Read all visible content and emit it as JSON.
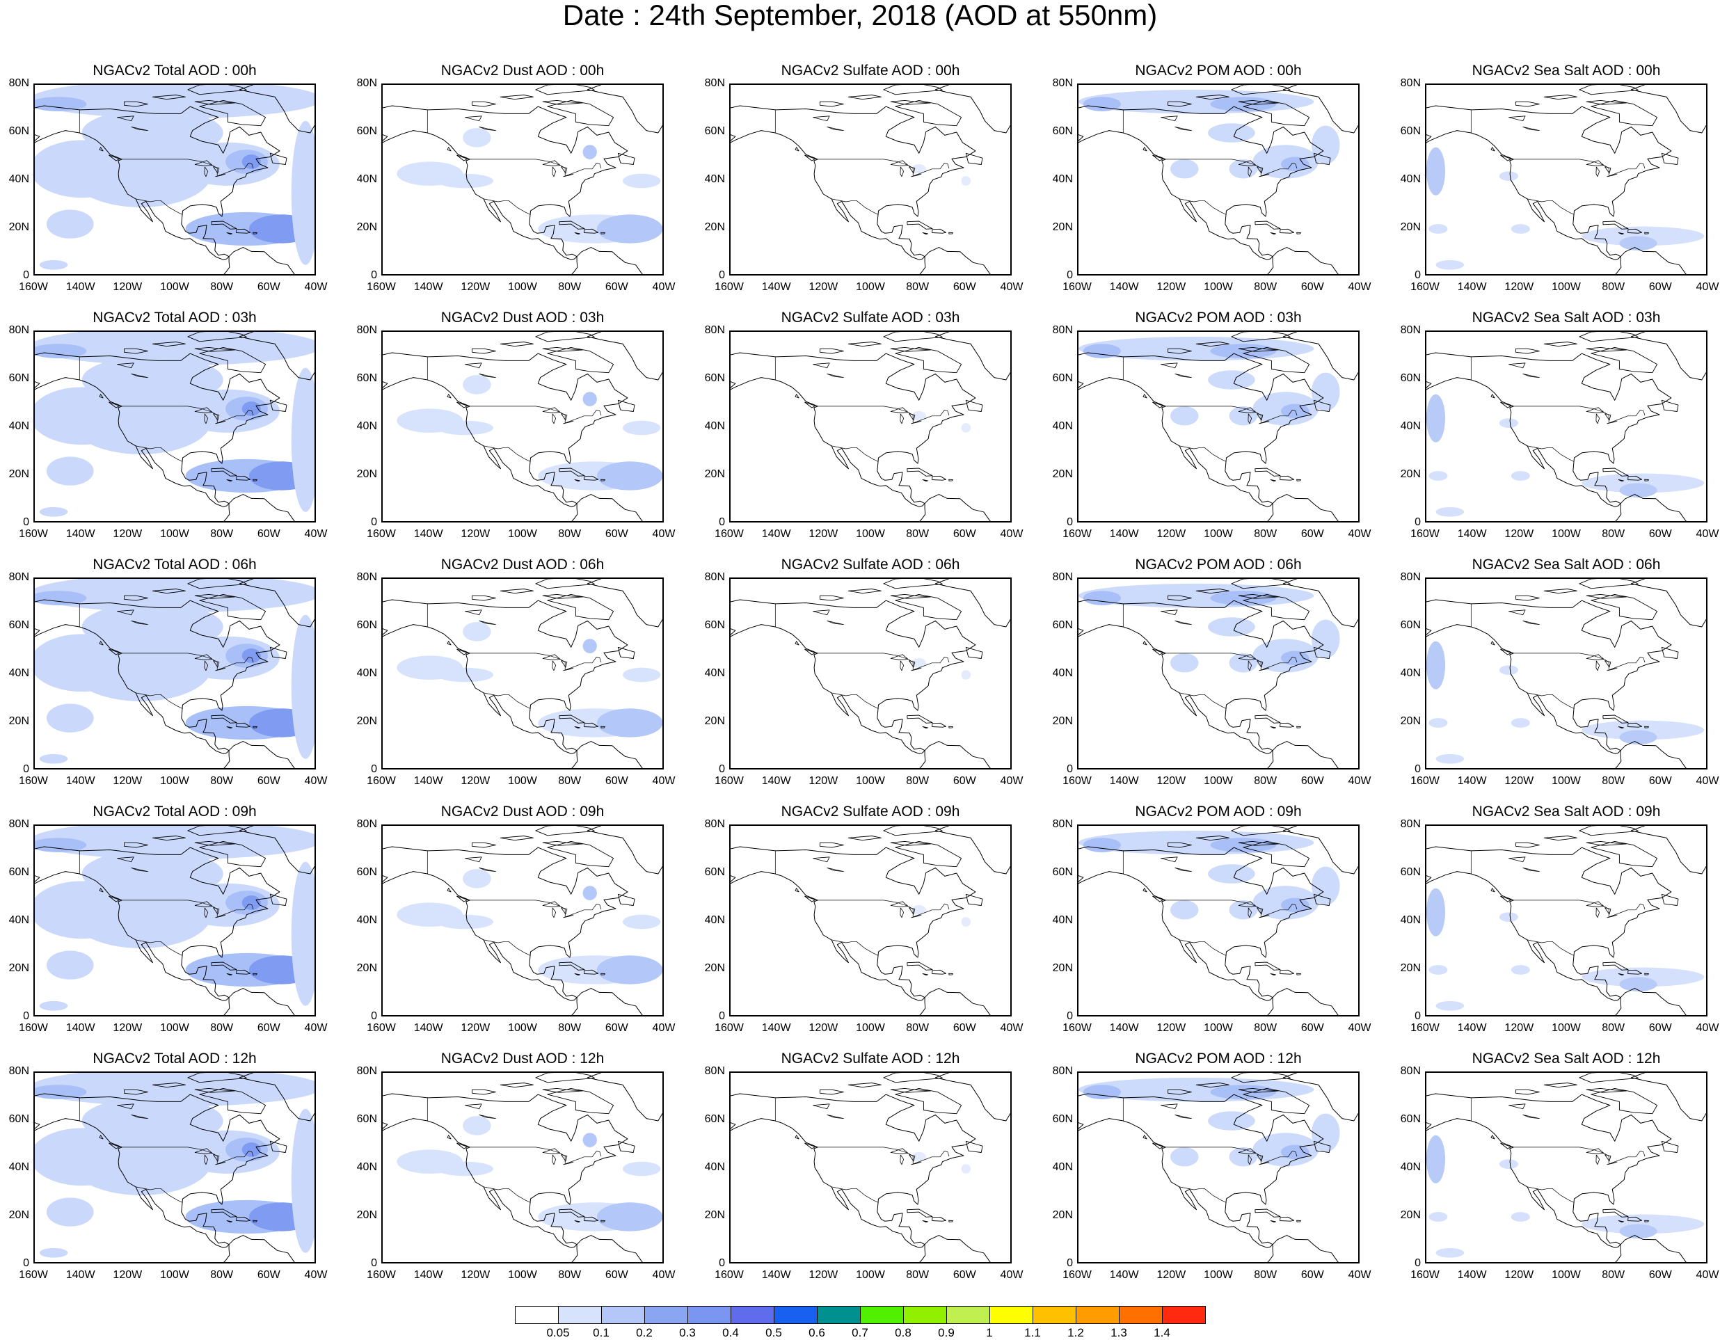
{
  "title": "Date : 24th September, 2018 (AOD at 550nm)",
  "columns": [
    {
      "key": "total",
      "fill": [
        "#c9d8fb",
        "#a9bff7",
        "#7f9cf2"
      ]
    },
    {
      "key": "dust",
      "fill": [
        "#d7e2fc",
        "#b3c7f8",
        "#8aa6f3"
      ]
    },
    {
      "key": "sulfate",
      "fill": [
        "#e4ebfd",
        "#d7e2fc",
        "#c9d8fb"
      ]
    },
    {
      "key": "pom",
      "fill": [
        "#ccdafb",
        "#a9bff7",
        "#7f9cf2"
      ]
    },
    {
      "key": "seasalt",
      "fill": [
        "#d4e0fc",
        "#b8cbf8",
        "#a3baf6"
      ]
    }
  ],
  "panels": [
    [
      "NGACv2 Total AOD : 00h",
      "NGACv2 Dust AOD : 00h",
      "NGACv2 Sulfate AOD : 00h",
      "NGACv2 POM AOD : 00h",
      "NGACv2 Sea Salt AOD : 00h"
    ],
    [
      "NGACv2 Total AOD : 03h",
      "NGACv2 Dust AOD : 03h",
      "NGACv2 Sulfate AOD : 03h",
      "NGACv2 POM AOD : 03h",
      "NGACv2 Sea Salt AOD : 03h"
    ],
    [
      "NGACv2 Total AOD : 06h",
      "NGACv2 Dust AOD : 06h",
      "NGACv2 Sulfate AOD : 06h",
      "NGACv2 POM AOD : 06h",
      "NGACv2 Sea Salt AOD : 06h"
    ],
    [
      "NGACv2 Total AOD : 09h",
      "NGACv2 Dust AOD : 09h",
      "NGACv2 Sulfate AOD : 09h",
      "NGACv2 POM AOD : 09h",
      "NGACv2 Sea Salt  AOD : 09h"
    ],
    [
      "NGACv2 Total AOD  : 12h",
      "NGACv2 Dust AOD : 12h",
      "NGACv2 Sulfate AOD : 12h",
      "NGACv2 POM  AOD : 12h",
      "NGACv2 Sea Salt  AOD : 12h"
    ]
  ],
  "lat_labels": [
    "80N",
    "60N",
    "40N",
    "20N",
    "0"
  ],
  "lon_labels": [
    "160W",
    "140W",
    "120W",
    "100W",
    "80W",
    "60W",
    "40W"
  ],
  "map_extent": {
    "lon": [
      -160,
      -40
    ],
    "lat": [
      0,
      80
    ]
  },
  "colorbar": {
    "colors": [
      "#ffffff",
      "#d7e2fc",
      "#b3c7f8",
      "#8aa6f3",
      "#7b96f1",
      "#5f6ded",
      "#1860f0",
      "#009090",
      "#50f000",
      "#90f000",
      "#c0f050",
      "#ffff00",
      "#ffc000",
      "#ff9c00",
      "#ff7000",
      "#ff2a10"
    ],
    "labels": [
      "0.05",
      "0.1",
      "0.2",
      "0.3",
      "0.4",
      "0.5",
      "0.6",
      "0.7",
      "0.8",
      "0.9",
      "1",
      "1.1",
      "1.2",
      "1.3",
      "1.4"
    ]
  }
}
